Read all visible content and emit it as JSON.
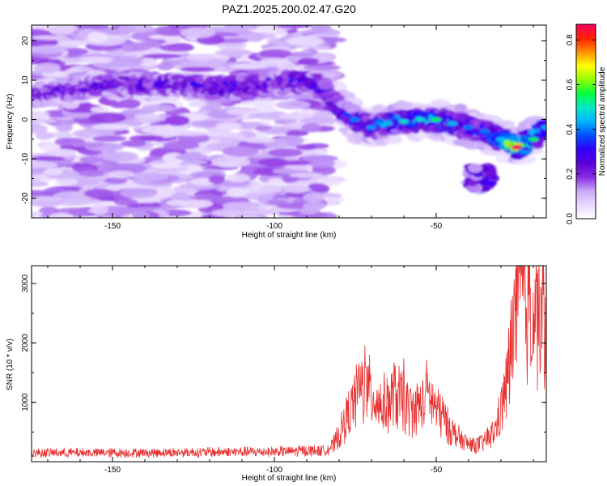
{
  "title": "PAZ1.2025.200.02.47.G20",
  "colorbar": {
    "label": "Normalized spectral amplitude",
    "range": [
      0.0,
      0.87
    ],
    "ticks": [
      "0.0",
      "0.2",
      "0.4",
      "0.6",
      "0.8"
    ],
    "tick_values": [
      0.0,
      0.2,
      0.4,
      0.6,
      0.8
    ],
    "colors": [
      "#ffffff",
      "#e8d8ff",
      "#c8a8f8",
      "#8a2be2",
      "#5b00d8",
      "#3000ff",
      "#0050ff",
      "#00b4ff",
      "#00e8c8",
      "#00ff40",
      "#90ff00",
      "#ffff00",
      "#ff9000",
      "#ff2000",
      "#ff0060"
    ]
  },
  "chart_data": [
    {
      "type": "heatmap",
      "title": "",
      "xlabel": "Height of straight line (km)",
      "ylabel": "Frequency (Hz)",
      "xlim": [
        -175,
        -16
      ],
      "ylim": [
        -25,
        24
      ],
      "xticks": [
        -150,
        -100,
        -50
      ],
      "xtick_labels": [
        "-150",
        "-100",
        "-50"
      ],
      "yticks": [
        20,
        10,
        0,
        -10,
        -20
      ],
      "ytick_labels": [
        "20",
        "10",
        "0",
        "-10",
        "-20"
      ],
      "grid": false,
      "noise_region_x": [
        -175,
        -83
      ],
      "ridge": {
        "x": [
          -175,
          -160,
          -145,
          -130,
          -115,
          -100,
          -90,
          -85,
          -80,
          -75,
          -70,
          -65,
          -60,
          -55,
          -50,
          -45,
          -40,
          -35,
          -30,
          -25,
          -20,
          -16
        ],
        "frequency_hz": [
          6,
          8,
          9,
          9,
          8,
          9,
          10,
          8,
          3,
          0,
          -2,
          -1,
          -0.5,
          0,
          0,
          -1,
          -2,
          -3,
          -5,
          -7,
          -5,
          -2
        ],
        "amplitude": [
          0.25,
          0.3,
          0.3,
          0.3,
          0.35,
          0.3,
          0.35,
          0.3,
          0.35,
          0.4,
          0.42,
          0.45,
          0.5,
          0.5,
          0.55,
          0.45,
          0.4,
          0.4,
          0.45,
          0.87,
          0.55,
          0.45
        ]
      },
      "secondary_blob": {
        "x": [
          -40,
          -33
        ],
        "frequency_hz": [
          -18,
          -12
        ],
        "amplitude": 0.3
      }
    },
    {
      "type": "line",
      "title": "",
      "xlabel": "Height of straight line (km)",
      "ylabel": "SNR (10 * v/v)",
      "xlim": [
        -175,
        -16
      ],
      "ylim": [
        0,
        3300
      ],
      "xticks": [
        -150,
        -100,
        -50
      ],
      "xtick_labels": [
        "-150",
        "-100",
        "-50"
      ],
      "yticks": [
        1000,
        2000,
        3000
      ],
      "ytick_labels": [
        "1000",
        "2000",
        "3000"
      ],
      "grid": false,
      "series": [
        {
          "color": "#e83030",
          "x": [
            -175,
            -150,
            -120,
            -100,
            -85,
            -82,
            -80,
            -78,
            -75,
            -73,
            -70,
            -67,
            -65,
            -62,
            -60,
            -57,
            -55,
            -52,
            -50,
            -47,
            -45,
            -42,
            -40,
            -37,
            -35,
            -32,
            -30,
            -28,
            -26,
            -24,
            -22,
            -20,
            -18,
            -16
          ],
          "y": [
            150,
            150,
            160,
            170,
            190,
            260,
            450,
            700,
            1050,
            1250,
            1150,
            950,
            1000,
            1100,
            950,
            850,
            950,
            1100,
            900,
            700,
            500,
            350,
            300,
            280,
            350,
            500,
            850,
            1400,
            2200,
            2900,
            2700,
            2600,
            2500,
            2300
          ],
          "spikes": [
            {
              "x": -74,
              "y": 1750
            },
            {
              "x": -72,
              "y": 2060
            },
            {
              "x": -63,
              "y": 1880
            },
            {
              "x": -60,
              "y": 1850
            },
            {
              "x": -53,
              "y": 1800
            },
            {
              "x": -26,
              "y": 3280
            },
            {
              "x": -21,
              "y": 3100
            },
            {
              "x": -19,
              "y": 3050
            }
          ]
        }
      ]
    }
  ]
}
